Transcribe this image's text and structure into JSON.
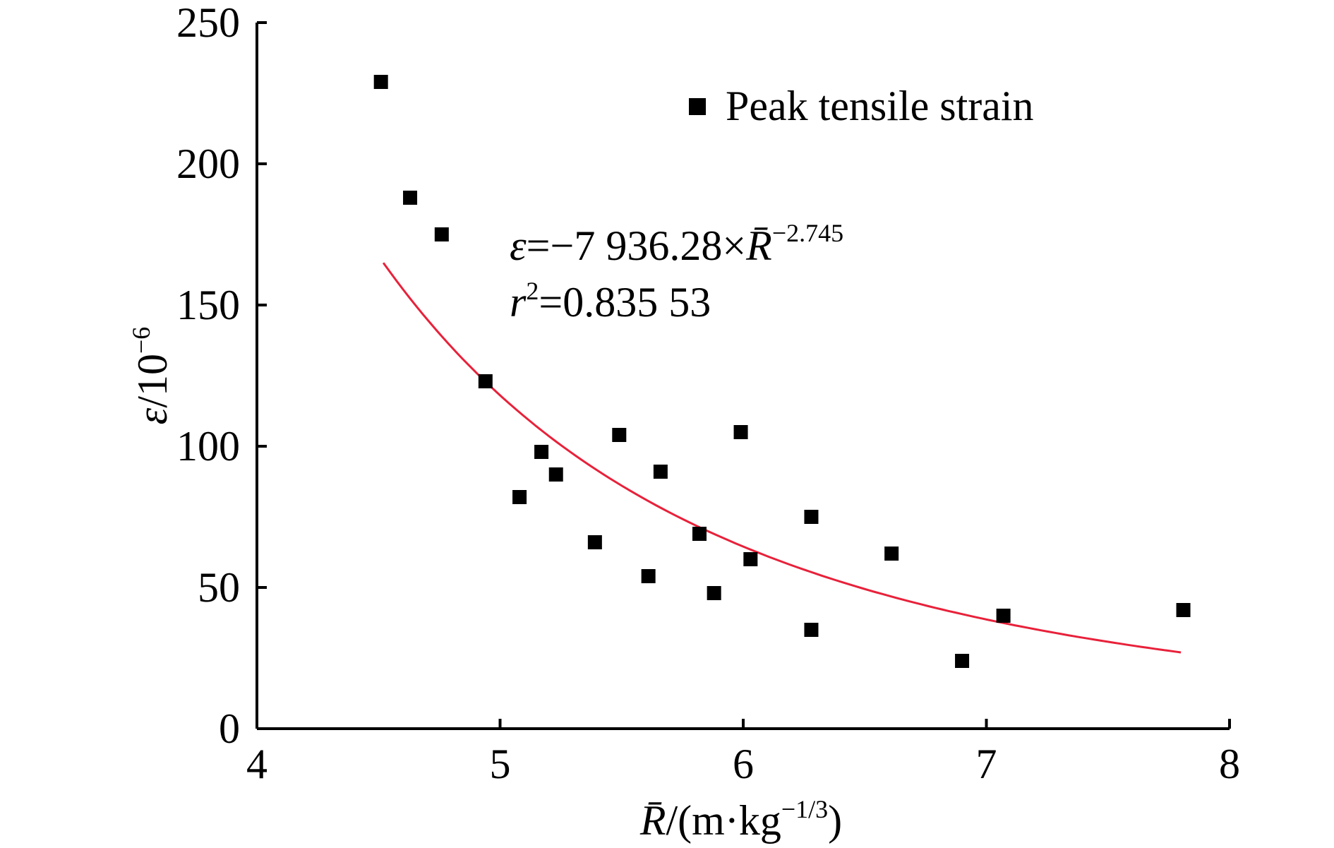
{
  "chart_data": {
    "type": "scatter",
    "xlabel": {
      "base": "R̄",
      "unit": "/(m·kg",
      "unit_exp": "−1/3",
      "unit_close": ")"
    },
    "ylabel": {
      "base": "ε",
      "unit": "/10",
      "unit_exp": "−6"
    },
    "xlim": [
      4,
      8
    ],
    "ylim": [
      0,
      250
    ],
    "xticks": [
      "4",
      "5",
      "6",
      "7",
      "8"
    ],
    "yticks": [
      "0",
      "50",
      "100",
      "150",
      "200",
      "250"
    ],
    "grid": false,
    "legend": {
      "placement": "top-right",
      "label": "Peak tensile strain"
    },
    "colors": {
      "points": "#000000",
      "fit": "#e8213a",
      "axes": "#000000",
      "background": "#ffffff"
    },
    "series": [
      {
        "name": "Peak tensile strain",
        "marker": "square",
        "points": [
          [
            4.51,
            229
          ],
          [
            4.63,
            188
          ],
          [
            4.76,
            175
          ],
          [
            4.94,
            123
          ],
          [
            5.08,
            82
          ],
          [
            5.17,
            98
          ],
          [
            5.23,
            90
          ],
          [
            5.39,
            66
          ],
          [
            5.49,
            104
          ],
          [
            5.61,
            54
          ],
          [
            5.66,
            91
          ],
          [
            5.82,
            69
          ],
          [
            5.88,
            48
          ],
          [
            5.99,
            105
          ],
          [
            6.03,
            60
          ],
          [
            6.28,
            75
          ],
          [
            6.28,
            35
          ],
          [
            6.61,
            62
          ],
          [
            6.9,
            24
          ],
          [
            7.07,
            40
          ],
          [
            7.81,
            42
          ]
        ]
      }
    ],
    "fit": {
      "type": "power",
      "x_range": [
        4.52,
        7.8
      ],
      "equation": {
        "lhs": "ε",
        "eq": "=−7 936.28×",
        "var": "R̄",
        "exp": "−2.745"
      },
      "r2": {
        "var": "r",
        "exp": "2",
        "eq": "=0.835 53"
      }
    }
  }
}
